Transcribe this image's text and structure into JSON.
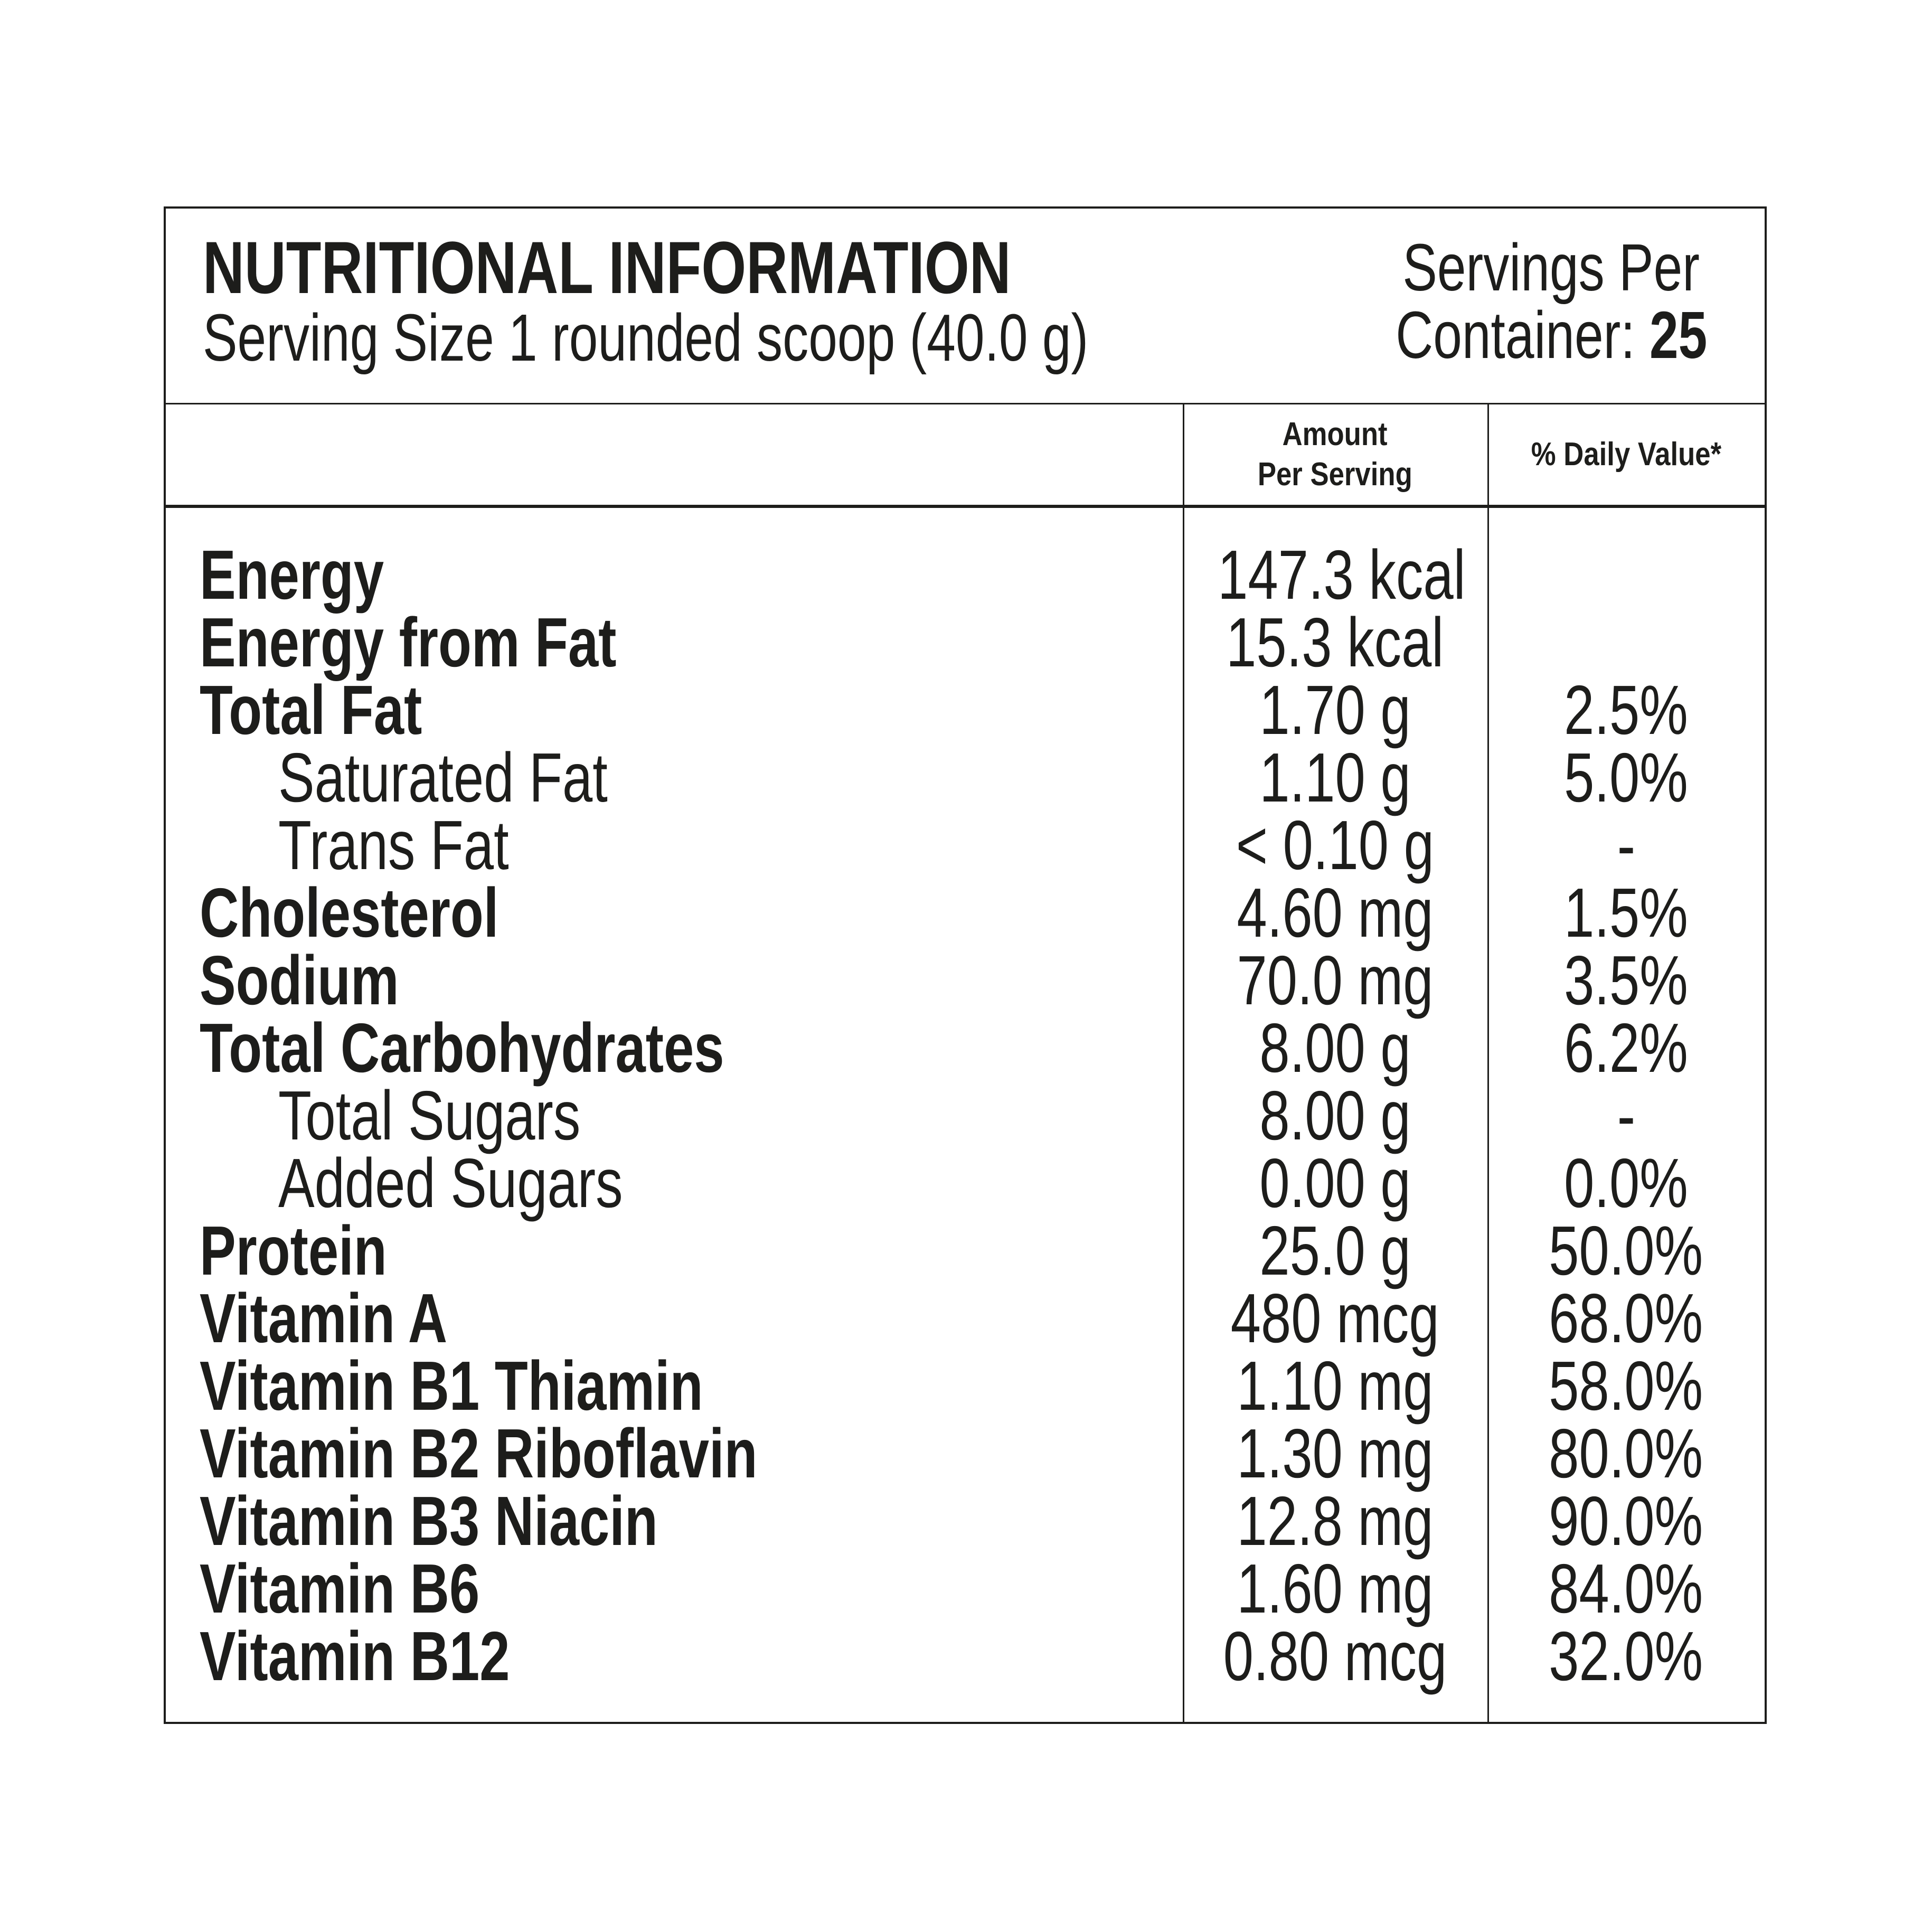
{
  "header": {
    "title": "NUTRITIONAL INFORMATION",
    "serving_size": "Serving Size 1 rounded scoop (40.0 g)",
    "servings_line1": "Servings Per",
    "servings_line2_label": "Container:",
    "servings_count": "25"
  },
  "columns": {
    "amount_line1": "Amount",
    "amount_line2": "Per Serving",
    "daily_value": "% Daily Value*"
  },
  "rows": [
    {
      "label": "Energy",
      "amount": "147.3 kcal",
      "daily": "",
      "bold": true,
      "indent": false
    },
    {
      "label": "Energy from Fat",
      "amount": "15.3 kcal",
      "daily": "",
      "bold": true,
      "indent": false
    },
    {
      "label": "Total Fat",
      "amount": "1.70 g",
      "daily": "2.5%",
      "bold": true,
      "indent": false
    },
    {
      "label": "Saturated Fat",
      "amount": "1.10 g",
      "daily": "5.0%",
      "bold": false,
      "indent": true
    },
    {
      "label": "Trans Fat",
      "amount": "< 0.10 g",
      "daily": "-",
      "bold": false,
      "indent": true
    },
    {
      "label": "Cholesterol",
      "amount": "4.60 mg",
      "daily": "1.5%",
      "bold": true,
      "indent": false
    },
    {
      "label": "Sodium",
      "amount": "70.0 mg",
      "daily": "3.5%",
      "bold": true,
      "indent": false
    },
    {
      "label": "Total Carbohydrates",
      "amount": "8.00 g",
      "daily": "6.2%",
      "bold": true,
      "indent": false
    },
    {
      "label": "Total Sugars",
      "amount": "8.00 g",
      "daily": "-",
      "bold": false,
      "indent": true
    },
    {
      "label": "Added Sugars",
      "amount": "0.00 g",
      "daily": "0.0%",
      "bold": false,
      "indent": true
    },
    {
      "label": "Protein",
      "amount": "25.0 g",
      "daily": "50.0%",
      "bold": true,
      "indent": false
    },
    {
      "label": "Vitamin A",
      "amount": "480 mcg",
      "daily": "68.0%",
      "bold": true,
      "indent": false
    },
    {
      "label": "Vitamin B1 Thiamin",
      "amount": "1.10 mg",
      "daily": "58.0%",
      "bold": true,
      "indent": false
    },
    {
      "label": "Vitamin B2 Riboflavin",
      "amount": "1.30 mg",
      "daily": "80.0%",
      "bold": true,
      "indent": false
    },
    {
      "label": "Vitamin B3 Niacin",
      "amount": "12.8 mg",
      "daily": "90.0%",
      "bold": true,
      "indent": false
    },
    {
      "label": "Vitamin B6",
      "amount": "1.60 mg",
      "daily": "84.0%",
      "bold": true,
      "indent": false
    },
    {
      "label": "Vitamin B12",
      "amount": "0.80 mcg",
      "daily": "32.0%",
      "bold": true,
      "indent": false
    }
  ],
  "colors": {
    "text": "#1d1d1b",
    "lines": "#1d1d1b",
    "background": "#ffffff"
  }
}
